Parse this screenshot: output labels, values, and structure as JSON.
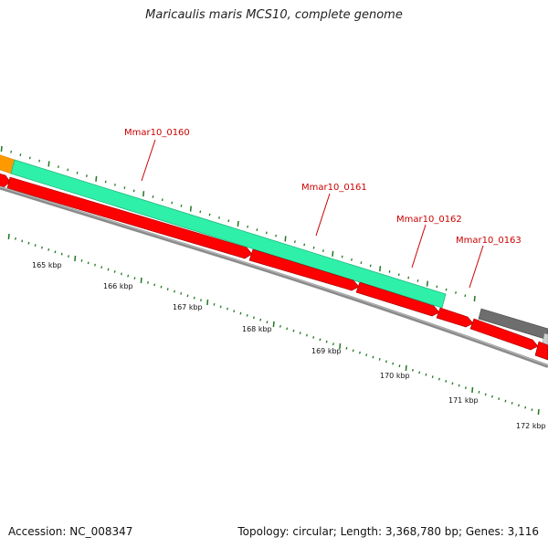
{
  "title": "Maricaulis maris MCS10, complete genome",
  "footer": {
    "accession": "Accession: NC_008347",
    "summary": "Topology: circular; Length: 3,368,780 bp; Genes: 3,116"
  },
  "colors": {
    "cds": "#ff0000",
    "cds_label": "#cc0000",
    "rrna": "#2ff0a8",
    "orange_feature": "#ff9900",
    "gray_feature": "#777777",
    "backbone": "#888888",
    "tick": "#227722"
  },
  "scale_labels": [
    "165 kbp",
    "166 kbp",
    "167 kbp",
    "168 kbp",
    "169 kbp",
    "170 kbp",
    "171 kbp",
    "172 kbp"
  ],
  "gene_labels": [
    "Mmar10_0160",
    "Mmar10_0161",
    "Mmar10_0162",
    "Mmar10_0163"
  ]
}
